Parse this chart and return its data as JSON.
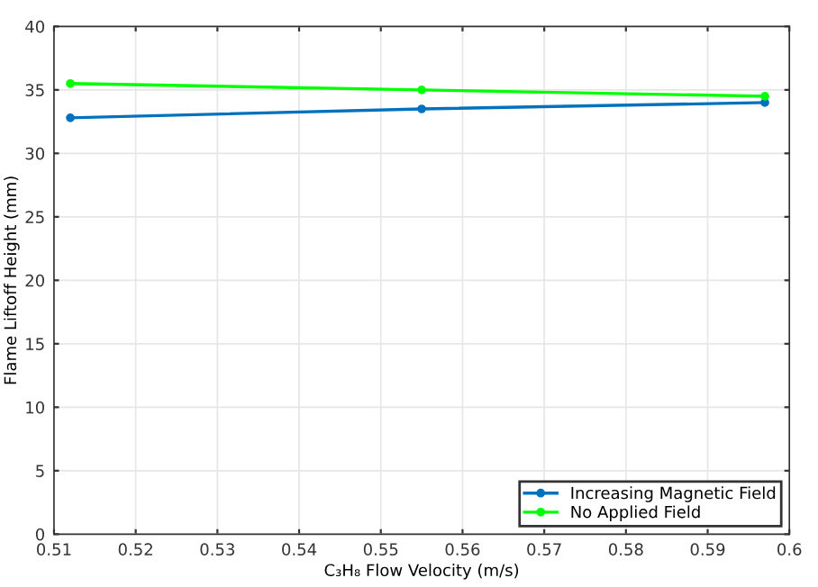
{
  "chart_data": {
    "type": "line",
    "xlabel": "C₃H₈ Flow Velocity (m/s)",
    "ylabel": "Flame Liftoff Height (mm)",
    "x": [
      0.512,
      0.555,
      0.597
    ],
    "series": [
      {
        "name": "Increasing Magnetic Field",
        "color": "#0072bd",
        "values": [
          32.8,
          33.5,
          34.0
        ]
      },
      {
        "name": "No Applied Field",
        "color": "#00ff00",
        "values": [
          35.5,
          35.0,
          34.5
        ]
      }
    ],
    "xlim": [
      0.51,
      0.6
    ],
    "xticks": [
      0.51,
      0.52,
      0.53,
      0.54,
      0.55,
      0.56,
      0.57,
      0.58,
      0.59,
      0.6
    ],
    "ylim": [
      0,
      40
    ],
    "yticks": [
      0,
      5,
      10,
      15,
      20,
      25,
      30,
      35,
      40
    ],
    "grid": true,
    "legend": "bottom right",
    "marker": "circle",
    "line_style": "solid"
  }
}
